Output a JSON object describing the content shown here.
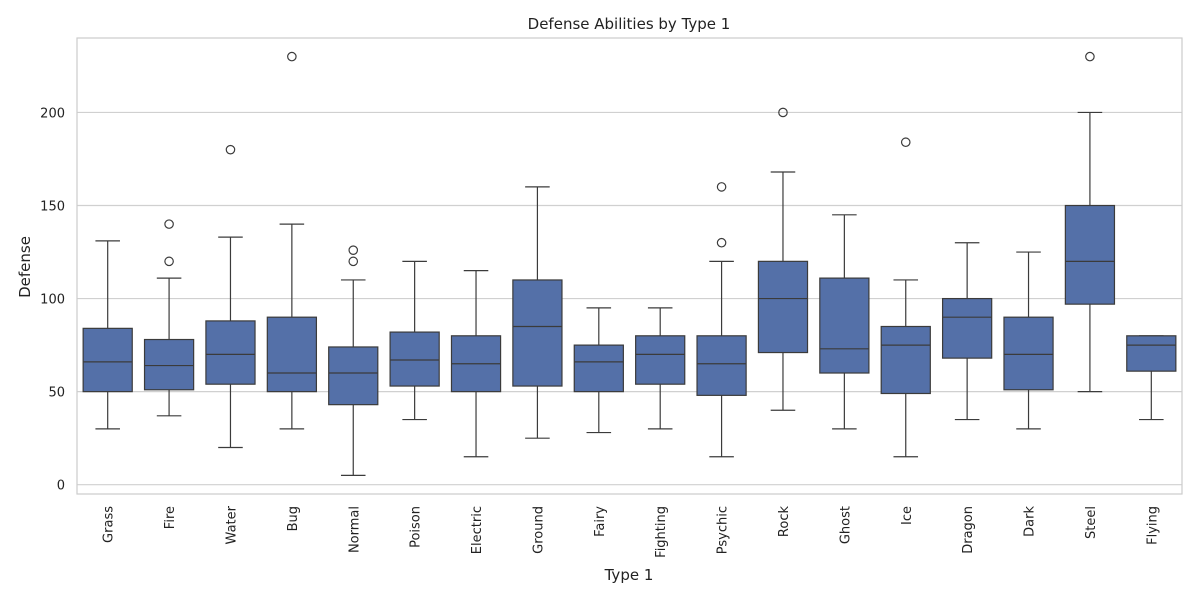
{
  "chart_data": {
    "type": "box",
    "title": "Defense Abilities by Type 1",
    "xlabel": "Type 1",
    "ylabel": "Defense",
    "ylim": [
      -5,
      240
    ],
    "yticks": [
      0,
      50,
      100,
      150,
      200
    ],
    "grid": true,
    "colors": {
      "box_fill": "#5470a8",
      "line": "#3b3b3b",
      "grid": "#d0d0d0",
      "frame": "#cccccc"
    },
    "categories": [
      "Grass",
      "Fire",
      "Water",
      "Bug",
      "Normal",
      "Poison",
      "Electric",
      "Ground",
      "Fairy",
      "Fighting",
      "Psychic",
      "Rock",
      "Ghost",
      "Ice",
      "Dragon",
      "Dark",
      "Steel",
      "Flying"
    ],
    "boxes": [
      {
        "min": 30,
        "q1": 50,
        "median": 66,
        "q3": 84,
        "max": 131,
        "outliers": []
      },
      {
        "min": 37,
        "q1": 51,
        "median": 64,
        "q3": 78,
        "max": 111,
        "outliers": [
          120,
          140
        ]
      },
      {
        "min": 20,
        "q1": 54,
        "median": 70,
        "q3": 88,
        "max": 133,
        "outliers": [
          180
        ]
      },
      {
        "min": 30,
        "q1": 50,
        "median": 60,
        "q3": 90,
        "max": 140,
        "outliers": [
          230
        ]
      },
      {
        "min": 5,
        "q1": 43,
        "median": 60,
        "q3": 74,
        "max": 110,
        "outliers": [
          120,
          126
        ]
      },
      {
        "min": 35,
        "q1": 53,
        "median": 67,
        "q3": 82,
        "max": 120,
        "outliers": []
      },
      {
        "min": 15,
        "q1": 50,
        "median": 65,
        "q3": 80,
        "max": 115,
        "outliers": []
      },
      {
        "min": 25,
        "q1": 53,
        "median": 85,
        "q3": 110,
        "max": 160,
        "outliers": []
      },
      {
        "min": 28,
        "q1": 50,
        "median": 66,
        "q3": 75,
        "max": 95,
        "outliers": []
      },
      {
        "min": 30,
        "q1": 54,
        "median": 70,
        "q3": 80,
        "max": 95,
        "outliers": []
      },
      {
        "min": 15,
        "q1": 48,
        "median": 65,
        "q3": 80,
        "max": 120,
        "outliers": [
          130,
          160
        ]
      },
      {
        "min": 40,
        "q1": 71,
        "median": 100,
        "q3": 120,
        "max": 168,
        "outliers": [
          200
        ]
      },
      {
        "min": 30,
        "q1": 60,
        "median": 73,
        "q3": 111,
        "max": 145,
        "outliers": []
      },
      {
        "min": 15,
        "q1": 49,
        "median": 75,
        "q3": 85,
        "max": 110,
        "outliers": [
          184
        ]
      },
      {
        "min": 35,
        "q1": 68,
        "median": 90,
        "q3": 100,
        "max": 130,
        "outliers": []
      },
      {
        "min": 30,
        "q1": 51,
        "median": 70,
        "q3": 90,
        "max": 125,
        "outliers": []
      },
      {
        "min": 50,
        "q1": 97,
        "median": 120,
        "q3": 150,
        "max": 200,
        "outliers": [
          230
        ]
      },
      {
        "min": 35,
        "q1": 61,
        "median": 75,
        "q3": 80,
        "max": 80,
        "outliers": []
      }
    ]
  }
}
